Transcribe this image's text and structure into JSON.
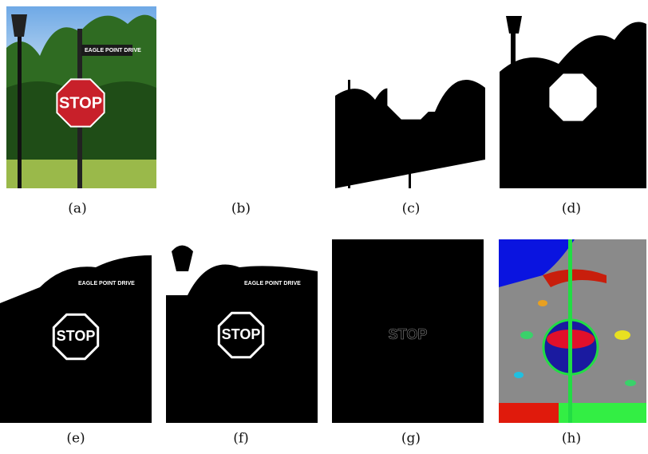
{
  "figure": {
    "panels": [
      {
        "label": "(a)"
      },
      {
        "label": "(b)"
      },
      {
        "label": "(c)"
      },
      {
        "label": "(d)"
      },
      {
        "label": "(e)"
      },
      {
        "label": "(f)"
      },
      {
        "label": "(g)"
      },
      {
        "label": "(h)"
      }
    ],
    "sign_text": "STOP",
    "street_sign_text": "EAGLE POINT DRIVE"
  }
}
